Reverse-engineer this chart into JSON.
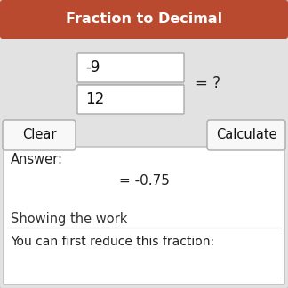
{
  "title": "Fraction to Decimal",
  "title_bg_color": "#B94A30",
  "title_text_color": "#FFFFFF",
  "outer_bg_color": "#E2E2E2",
  "border_color": "#C0C0C0",
  "numerator": "-9",
  "denominator": "12",
  "equals_question": "= ?",
  "answer_label": "Answer:",
  "answer_value": "= -0.75",
  "showing_work_label": "Showing the work",
  "reduce_label": "You can first reduce this fraction:",
  "clear_btn": "Clear",
  "calculate_btn": "Calculate",
  "input_box_color": "#FFFFFF",
  "input_border_color": "#AAAAAA",
  "btn_bg_color": "#F8F8F8",
  "btn_border_color": "#AAAAAA",
  "answer_section_bg": "#FFFFFF",
  "answer_section_border": "#BBBBBB",
  "showing_work_color": "#333333",
  "divider_color": "#AAAAAA"
}
